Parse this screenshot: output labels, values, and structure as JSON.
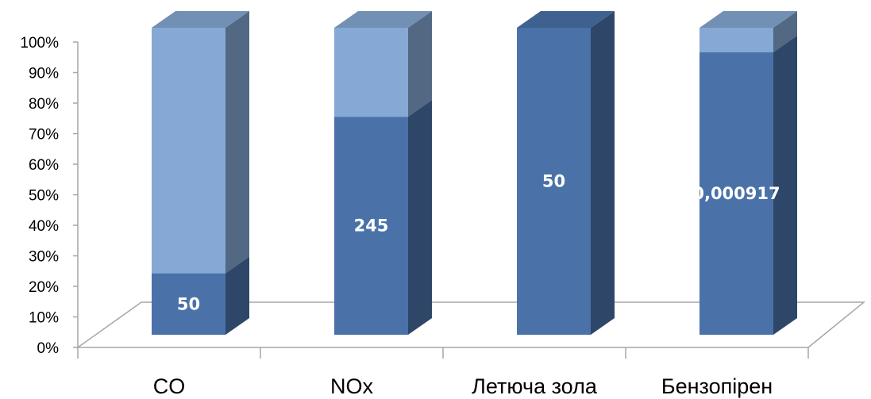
{
  "chart_data": {
    "type": "bar",
    "stacked": "percent",
    "three_d": true,
    "categories": [
      "CO",
      "NOx",
      "Летюча зола",
      "Бензопірен"
    ],
    "series": [
      {
        "color": "#4A72A8",
        "values": [
          20,
          71,
          100,
          92
        ],
        "data_labels": [
          "50",
          "245",
          "50",
          "0,000917"
        ]
      },
      {
        "color": "#86A8D4",
        "values": [
          80,
          29,
          0,
          8
        ],
        "data_labels": [
          "",
          "",
          "",
          ""
        ]
      }
    ],
    "y_ticks": [
      "0%",
      "10%",
      "20%",
      "30%",
      "40%",
      "50%",
      "60%",
      "70%",
      "80%",
      "90%",
      "100%"
    ],
    "ylim": [
      0,
      100
    ],
    "grid": false,
    "legend": "none"
  }
}
